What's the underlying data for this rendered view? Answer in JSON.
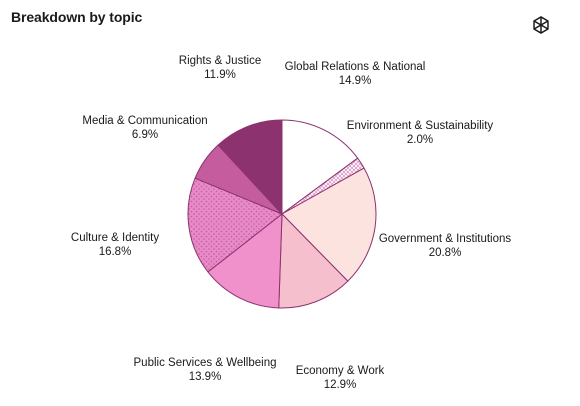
{
  "header": {
    "title": "Breakdown by topic",
    "logo_icon": "openai-logo-icon"
  },
  "chart_data": {
    "type": "pie",
    "title": "Breakdown by topic",
    "start": "12 o'clock, clockwise",
    "categories": [
      "Global Relations & National",
      "Environment & Sustainability",
      "Government & Institutions",
      "Economy & Work",
      "Public Services & Wellbeing",
      "Culture & Identity",
      "Media & Communication",
      "Rights & Justice"
    ],
    "values": [
      14.9,
      2.0,
      20.8,
      12.9,
      13.9,
      16.8,
      6.9,
      11.9
    ],
    "value_labels": [
      "14.9%",
      "2.0%",
      "20.8%",
      "12.9%",
      "13.9%",
      "16.8%",
      "6.9%",
      "11.9%"
    ],
    "colors": [
      "#ffffff",
      "#ffffff",
      "#fde3df",
      "#f6bfcd",
      "#f191cc",
      "#e78ac7",
      "#c45c9e",
      "#8c336f"
    ],
    "patterns": [
      "none",
      "crosshatch",
      "none",
      "none",
      "none",
      "dots",
      "none",
      "none"
    ],
    "pattern_color": "#d88ac0",
    "stroke_color": "#8c336f"
  }
}
